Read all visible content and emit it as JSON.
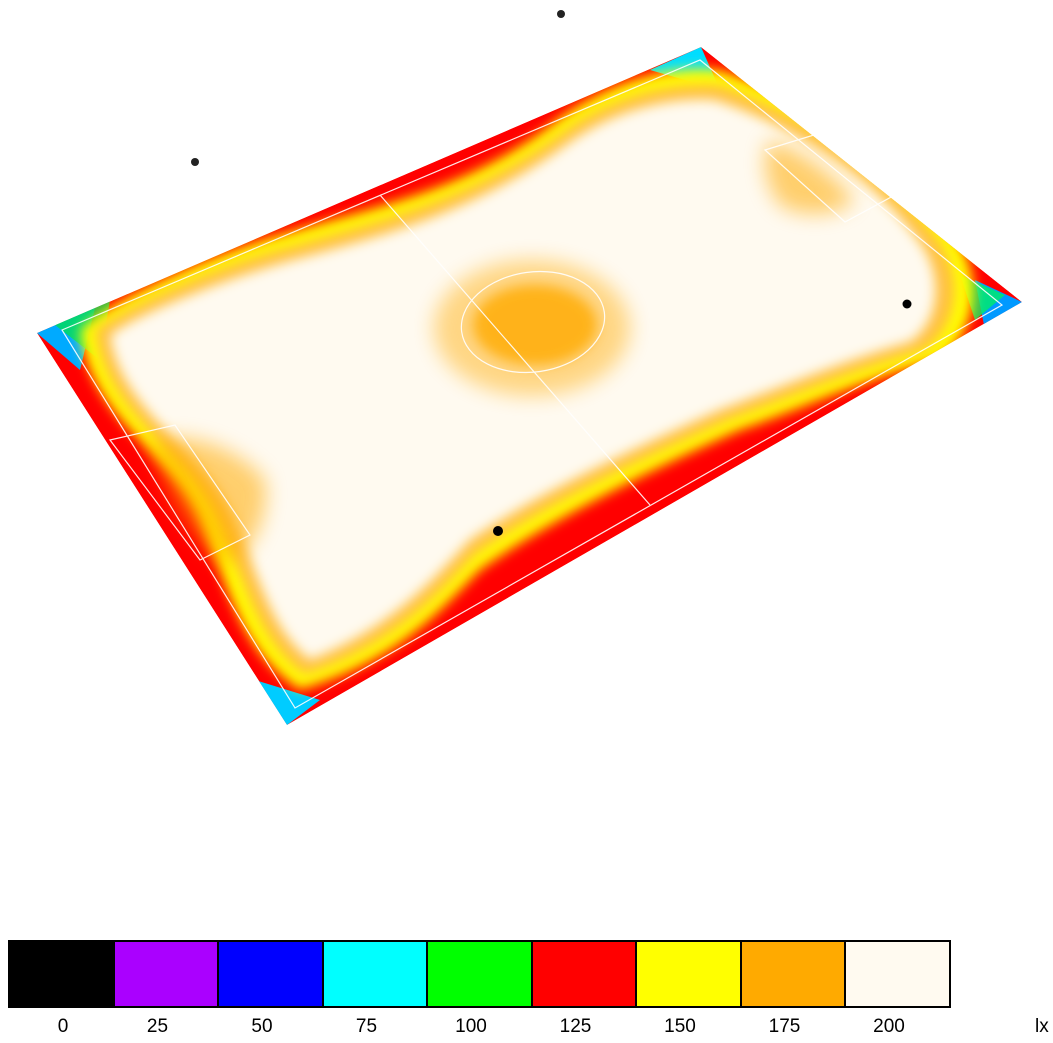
{
  "legend": {
    "unit": "lx",
    "levels": [
      {
        "label": "0",
        "color": "#000000"
      },
      {
        "label": "25",
        "color": "#aa00ff"
      },
      {
        "label": "50",
        "color": "#0000ff"
      },
      {
        "label": "75",
        "color": "#00ffff"
      },
      {
        "label": "100",
        "color": "#00ff00"
      },
      {
        "label": "125",
        "color": "#ff0000"
      },
      {
        "label": "150",
        "color": "#ffff00"
      },
      {
        "label": "175",
        "color": "#ffaa00"
      },
      {
        "label": "200",
        "color": "#fffaf0"
      }
    ]
  },
  "field": {
    "field_color": "#fffaf0",
    "inner_ring_color": "#ffdd66",
    "center_blob_color": "#ffaa00",
    "line_color": "#ffffff"
  }
}
